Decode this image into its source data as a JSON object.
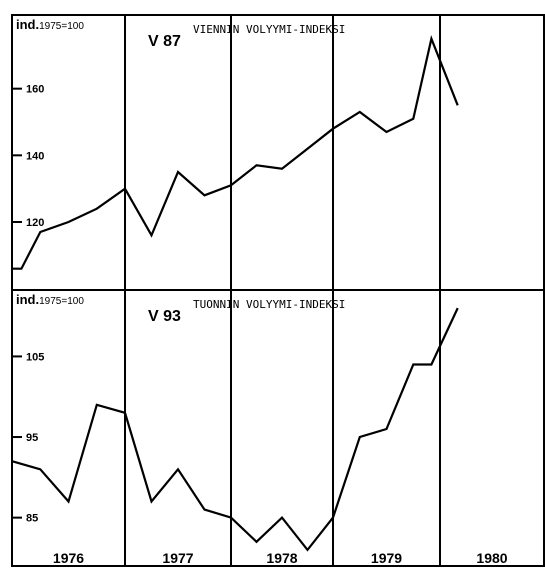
{
  "chart_data": [
    {
      "type": "line",
      "code": "V 87",
      "title": "VIENNIN VOLYYMI-INDEKSI",
      "ylabel": "ind.",
      "ylabel_base": "1975=100",
      "ylim": [
        102,
        180
      ],
      "yticks": [
        120,
        140,
        160
      ],
      "x_categories": [
        "1976",
        "1977",
        "1978",
        "1979",
        "1980"
      ],
      "x": [
        1976.0,
        1976.083,
        1976.25,
        1976.5,
        1976.75,
        1977.0,
        1977.25,
        1977.5,
        1977.75,
        1978.0,
        1978.25,
        1978.5,
        1978.75,
        1979.0,
        1979.25,
        1979.5,
        1979.75,
        1979.92,
        1980.17
      ],
      "series": [
        {
          "values": [
            106,
            106,
            117,
            120,
            124,
            130,
            116,
            135,
            128,
            131,
            137,
            136,
            142,
            148,
            153,
            147,
            151,
            175,
            155
          ]
        }
      ]
    },
    {
      "type": "line",
      "code": "V 93",
      "title": "TUONNIN VOLYYMI-INDEKSI",
      "ylabel": "ind.",
      "ylabel_base": "1975=100",
      "ylim": [
        79,
        112
      ],
      "yticks": [
        85,
        95,
        105
      ],
      "x_categories": [
        "1976",
        "1977",
        "1978",
        "1979",
        "1980"
      ],
      "x": [
        1976.0,
        1976.25,
        1976.5,
        1976.75,
        1977.0,
        1977.25,
        1977.5,
        1977.75,
        1978.0,
        1978.25,
        1978.5,
        1978.75,
        1979.0,
        1979.25,
        1979.5,
        1979.75,
        1979.92,
        1980.17
      ],
      "series": [
        {
          "values": [
            92,
            91,
            87,
            99,
            98,
            87,
            91,
            86,
            85,
            82,
            85,
            81,
            85,
            95,
            96,
            104,
            104,
            111
          ]
        }
      ]
    }
  ]
}
